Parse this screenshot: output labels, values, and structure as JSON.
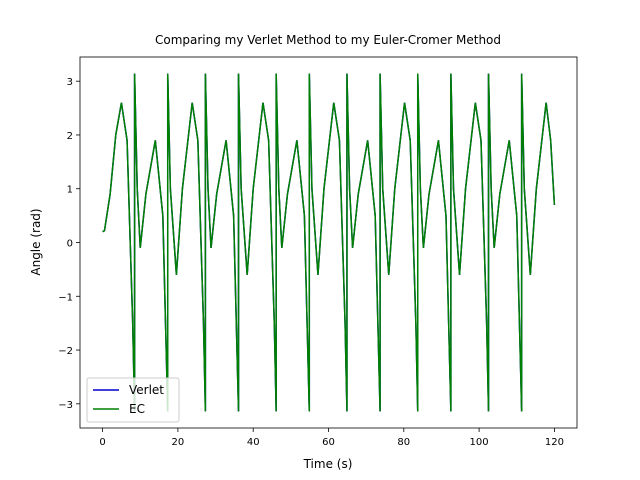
{
  "chart_data": {
    "type": "line",
    "title": "Comparing my Verlet Method to my Euler-Cromer Method",
    "x_label": "Time (s)",
    "y_label": "Angle (rad)",
    "x": [
      0,
      0.5,
      2,
      3.5,
      5,
      6.5,
      8,
      8.5,
      8.5,
      9.2,
      10,
      11.5,
      14,
      16,
      17.3,
      17.3,
      18,
      19.6,
      21.2,
      23.8,
      25.3,
      26.8,
      27.3,
      27.3,
      28,
      28.8,
      30.3,
      32.8,
      34.8,
      36.1,
      36.1,
      36.8,
      38.4,
      40,
      42.6,
      44.1,
      45.6,
      46.1,
      46.1,
      46.8,
      47.6,
      49.1,
      51.6,
      53.6,
      54.9,
      54.9,
      55.6,
      57.2,
      58.8,
      61.4,
      62.9,
      64.4,
      64.9,
      64.9,
      65.6,
      66.4,
      67.9,
      70.4,
      72.4,
      73.7,
      73.7,
      74.4,
      76,
      77.6,
      80.2,
      81.7,
      83.2,
      83.7,
      83.7,
      84.4,
      85.2,
      86.7,
      89.2,
      91.2,
      92.5,
      92.5,
      93.2,
      94.8,
      96.4,
      99,
      100.5,
      102,
      102.5,
      102.5,
      103.2,
      104,
      105.5,
      108,
      110,
      111.3,
      111.3,
      112,
      113.6,
      115.2,
      117.8,
      119,
      120
    ],
    "series": [
      {
        "name": "Verlet",
        "color": "#0000cc",
        "values": [
          0.2,
          0.22,
          0.9,
          2.0,
          2.6,
          1.9,
          -1.5,
          -3.14,
          3.14,
          1.0,
          -0.1,
          0.9,
          1.9,
          0.5,
          -3.14,
          3.14,
          1.0,
          -0.6,
          1.0,
          2.6,
          1.9,
          -1.5,
          -3.14,
          3.14,
          1.0,
          -0.1,
          0.9,
          1.9,
          0.5,
          -3.14,
          3.14,
          1.0,
          -0.6,
          1.0,
          2.6,
          1.9,
          -1.5,
          -3.14,
          3.14,
          1.0,
          -0.1,
          0.9,
          1.9,
          0.5,
          -3.14,
          3.14,
          1.0,
          -0.6,
          1.0,
          2.6,
          1.9,
          -1.5,
          -3.14,
          3.14,
          1.0,
          -0.1,
          0.9,
          1.9,
          0.5,
          -3.14,
          3.14,
          1.0,
          -0.6,
          1.0,
          2.6,
          1.9,
          -1.5,
          -3.14,
          3.14,
          1.0,
          -0.1,
          0.9,
          1.9,
          0.5,
          -3.14,
          3.14,
          1.0,
          -0.6,
          1.0,
          2.6,
          1.9,
          -1.5,
          -3.14,
          3.14,
          1.0,
          -0.1,
          0.9,
          1.9,
          0.5,
          -3.14,
          3.14,
          1.0,
          -0.6,
          1.0,
          2.6,
          1.9,
          0.7
        ]
      },
      {
        "name": "EC",
        "color": "#008000",
        "values": [
          0.2,
          0.22,
          0.9,
          2.0,
          2.6,
          1.9,
          -1.5,
          -3.14,
          3.14,
          1.0,
          -0.1,
          0.9,
          1.9,
          0.5,
          -3.14,
          3.14,
          1.0,
          -0.6,
          1.0,
          2.6,
          1.9,
          -1.5,
          -3.14,
          3.14,
          1.0,
          -0.1,
          0.9,
          1.9,
          0.5,
          -3.14,
          3.14,
          1.0,
          -0.6,
          1.0,
          2.6,
          1.9,
          -1.5,
          -3.14,
          3.14,
          1.0,
          -0.1,
          0.9,
          1.9,
          0.5,
          -3.14,
          3.14,
          1.0,
          -0.6,
          1.0,
          2.6,
          1.9,
          -1.5,
          -3.14,
          3.14,
          1.0,
          -0.1,
          0.9,
          1.9,
          0.5,
          -3.14,
          3.14,
          1.0,
          -0.6,
          1.0,
          2.6,
          1.9,
          -1.5,
          -3.14,
          3.14,
          1.0,
          -0.1,
          0.9,
          1.9,
          0.5,
          -3.14,
          3.14,
          1.0,
          -0.6,
          1.0,
          2.6,
          1.9,
          -1.5,
          -3.14,
          3.14,
          1.0,
          -0.1,
          0.9,
          1.9,
          0.5,
          -3.14,
          3.14,
          1.0,
          -0.6,
          1.0,
          2.6,
          1.9,
          0.7
        ]
      }
    ],
    "xlim": [
      -6,
      126
    ],
    "ylim": [
      -3.45,
      3.45
    ],
    "xticks": [
      0,
      20,
      40,
      60,
      80,
      100,
      120
    ],
    "yticks": [
      {
        "value": -3,
        "label": "−3"
      },
      {
        "value": -2,
        "label": "−2"
      },
      {
        "value": -1,
        "label": "−1"
      },
      0,
      1,
      2,
      3
    ],
    "legend": "lower left"
  }
}
